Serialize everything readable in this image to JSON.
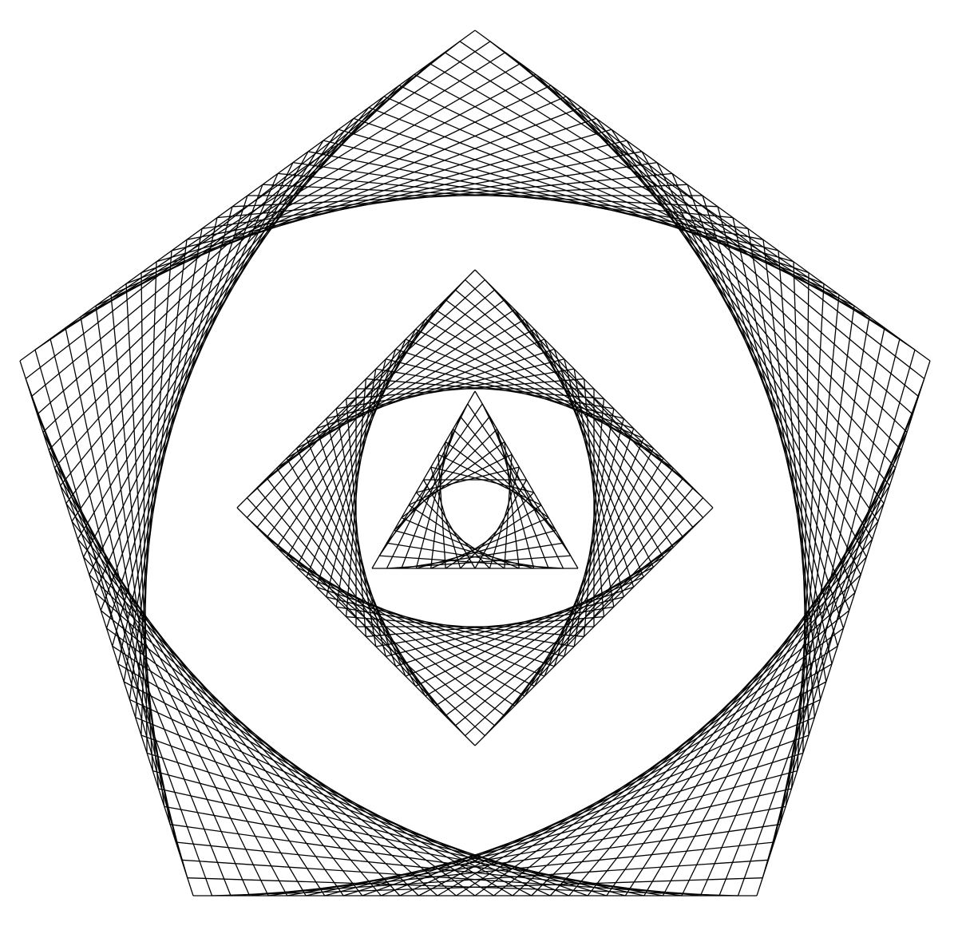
{
  "figure": {
    "stroke_color": "#000000",
    "background_color": "#ffffff",
    "shapes": [
      {
        "name": "pentagon",
        "sides": 5,
        "divisions": 30
      },
      {
        "name": "square",
        "sides": 4,
        "divisions": 24
      },
      {
        "name": "triangle",
        "sides": 3,
        "divisions": 14
      }
    ]
  }
}
